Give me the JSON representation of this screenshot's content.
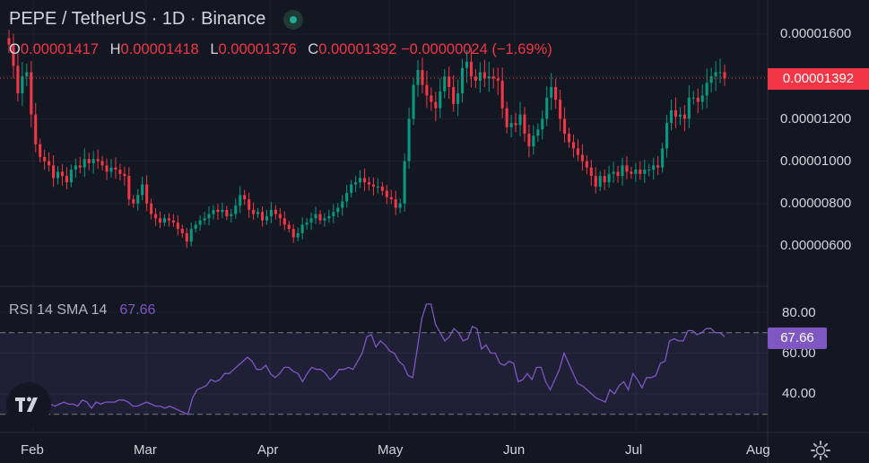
{
  "header": {
    "symbol_line": "PEPE / TetherUS · 1D · Binance"
  },
  "ohlc": [
    {
      "key": "O",
      "value": "0.00001417"
    },
    {
      "key": "H",
      "value": "0.00001418"
    },
    {
      "key": "L",
      "value": "0.00001376"
    },
    {
      "key": "C",
      "value": "0.00001392 −0.00000024 (−1.69%)"
    }
  ],
  "rsi": {
    "label": "RSI 14 SMA 14",
    "value": "67.66"
  },
  "price_axis": [
    "0.00001600",
    "0.00001400",
    "0.00001200",
    "0.00001000",
    "0.00000800",
    "0.00000600"
  ],
  "current_price": "0.00001392",
  "rsi_axis": [
    "80.00",
    "60.00",
    "40.00"
  ],
  "rsi_badge": "67.66",
  "x_axis": [
    "Feb",
    "Mar",
    "Apr",
    "May",
    "Jun",
    "Jul",
    "Aug"
  ],
  "colors": {
    "up": "#089981",
    "down": "#f23645",
    "rsi": "#7e57c2",
    "bg": "#131722"
  },
  "chart_data": [
    {
      "type": "candlestick",
      "title": "PEPE / TetherUS · 1D · Binance",
      "ylim": [
        5.2e-06,
        1.65e-05
      ],
      "x_ticks": [
        "Feb",
        "Mar",
        "Apr",
        "May",
        "Jun",
        "Jul",
        "Aug"
      ],
      "close": [
        1.55e-05,
        1.45e-05,
        1.32e-05,
        1.4e-05,
        1.42e-05,
        1.22e-05,
        1.08e-05,
        1.02e-05,
        1e-05,
        9.8e-06,
        9.2e-06,
        9.5e-06,
        9.3e-06,
        9e-06,
        9.6e-06,
        9.8e-06,
        9.7e-06,
        1.01e-05,
        9.9e-06,
        1.01e-05,
        1e-05,
        9.8e-06,
        9.5e-06,
        9.7e-06,
        9.6e-06,
        9.4e-06,
        9.3e-06,
        8.2e-06,
        8e-06,
        8.4e-06,
        8.9e-06,
        8e-06,
        7.5e-06,
        7.3e-06,
        7.1e-06,
        7.3e-06,
        7.2e-06,
        7.1e-06,
        6.8e-06,
        6.6e-06,
        6.2e-06,
        6.8e-06,
        7e-06,
        7.2e-06,
        7.3e-06,
        7.5e-06,
        7.7e-06,
        7.6e-06,
        7.7e-06,
        7.4e-06,
        7.5e-06,
        7.9e-06,
        8.4e-06,
        8.2e-06,
        7.7e-06,
        7.5e-06,
        7.6e-06,
        7.2e-06,
        7.4e-06,
        7.7e-06,
        7.5e-06,
        7.3e-06,
        7e-06,
        6.8e-06,
        6.4e-06,
        6.6e-06,
        7e-06,
        7.1e-06,
        7.3e-06,
        7.5e-06,
        7.2e-06,
        7.3e-06,
        7.4e-06,
        7.6e-06,
        7.8e-06,
        8.1e-06,
        8.5e-06,
        8.9e-06,
        9e-06,
        9.2e-06,
        9e-06,
        8.9e-06,
        8.8e-06,
        8.8e-06,
        8.6e-06,
        8.3e-06,
        8.2e-06,
        7.8e-06,
        8e-06,
        1e-05,
        1.2e-05,
        1.36e-05,
        1.43e-05,
        1.36e-05,
        1.31e-05,
        1.28e-05,
        1.25e-05,
        1.33e-05,
        1.4e-05,
        1.35e-05,
        1.27e-05,
        1.32e-05,
        1.44e-05,
        1.47e-05,
        1.4e-05,
        1.38e-05,
        1.42e-05,
        1.39e-05,
        1.4e-05,
        1.39e-05,
        1.38e-05,
        1.25e-05,
        1.16e-05,
        1.18e-05,
        1.17e-05,
        1.22e-05,
        1.13e-05,
        1.07e-05,
        1.12e-05,
        1.15e-05,
        1.2e-05,
        1.3e-05,
        1.35e-05,
        1.29e-05,
        1.2e-05,
        1.13e-05,
        1.09e-05,
        1.06e-05,
        1.03e-05,
        1e-05,
        9.7e-06,
        9.3e-06,
        8.8e-06,
        9.3e-06,
        9e-06,
        9.4e-06,
        9.5e-06,
        9.3e-06,
        9.8e-06,
        9.5e-06,
        9.4e-06,
        9.6e-06,
        9.4e-06,
        9.6e-06,
        9.6e-06,
        9.8e-06,
        9.7e-06,
        1.06e-05,
        1.18e-05,
        1.24e-05,
        1.21e-05,
        1.22e-05,
        1.2e-05,
        1.3e-05,
        1.3e-05,
        1.28e-05,
        1.31e-05,
        1.37e-05,
        1.4e-05,
        1.42e-05,
        1.42e-05,
        1.39e-05
      ],
      "last_close": 1.392e-05,
      "rsi": {
        "ylim": [
          25,
          90
        ],
        "levels": [
          70,
          30
        ],
        "values": [
          40,
          39,
          33,
          36,
          38,
          35,
          31,
          34,
          35,
          35,
          34,
          35,
          36,
          35,
          35,
          34,
          37,
          36,
          33,
          36,
          35,
          36,
          36,
          36,
          37,
          37,
          36,
          34,
          34,
          35,
          36,
          35,
          34,
          34,
          33,
          34,
          33,
          32,
          31,
          30,
          38,
          42,
          43,
          44,
          47,
          46,
          47,
          50,
          50,
          52,
          54,
          56,
          58,
          56,
          52,
          52,
          54,
          50,
          48,
          50,
          53,
          53,
          51,
          50,
          46,
          50,
          53,
          52,
          52,
          50,
          47,
          49,
          52,
          52,
          53,
          52,
          56,
          60,
          68,
          69,
          63,
          66,
          64,
          61,
          60,
          56,
          54,
          49,
          48,
          62,
          77,
          84,
          84,
          74,
          70,
          66,
          68,
          72,
          70,
          66,
          67,
          73,
          72,
          62,
          64,
          60,
          60,
          55,
          54,
          56,
          55,
          46,
          47,
          50,
          47,
          53,
          53,
          46,
          42,
          47,
          52,
          60,
          55,
          50,
          45,
          44,
          42,
          40,
          38,
          37,
          36,
          42,
          40,
          44,
          46,
          42,
          50,
          47,
          43,
          48,
          48,
          49,
          55,
          56,
          66,
          67,
          66,
          66,
          71,
          71,
          69,
          70,
          72,
          72,
          70,
          70,
          68
        ],
        "rsi_value": 67.66
      }
    }
  ]
}
